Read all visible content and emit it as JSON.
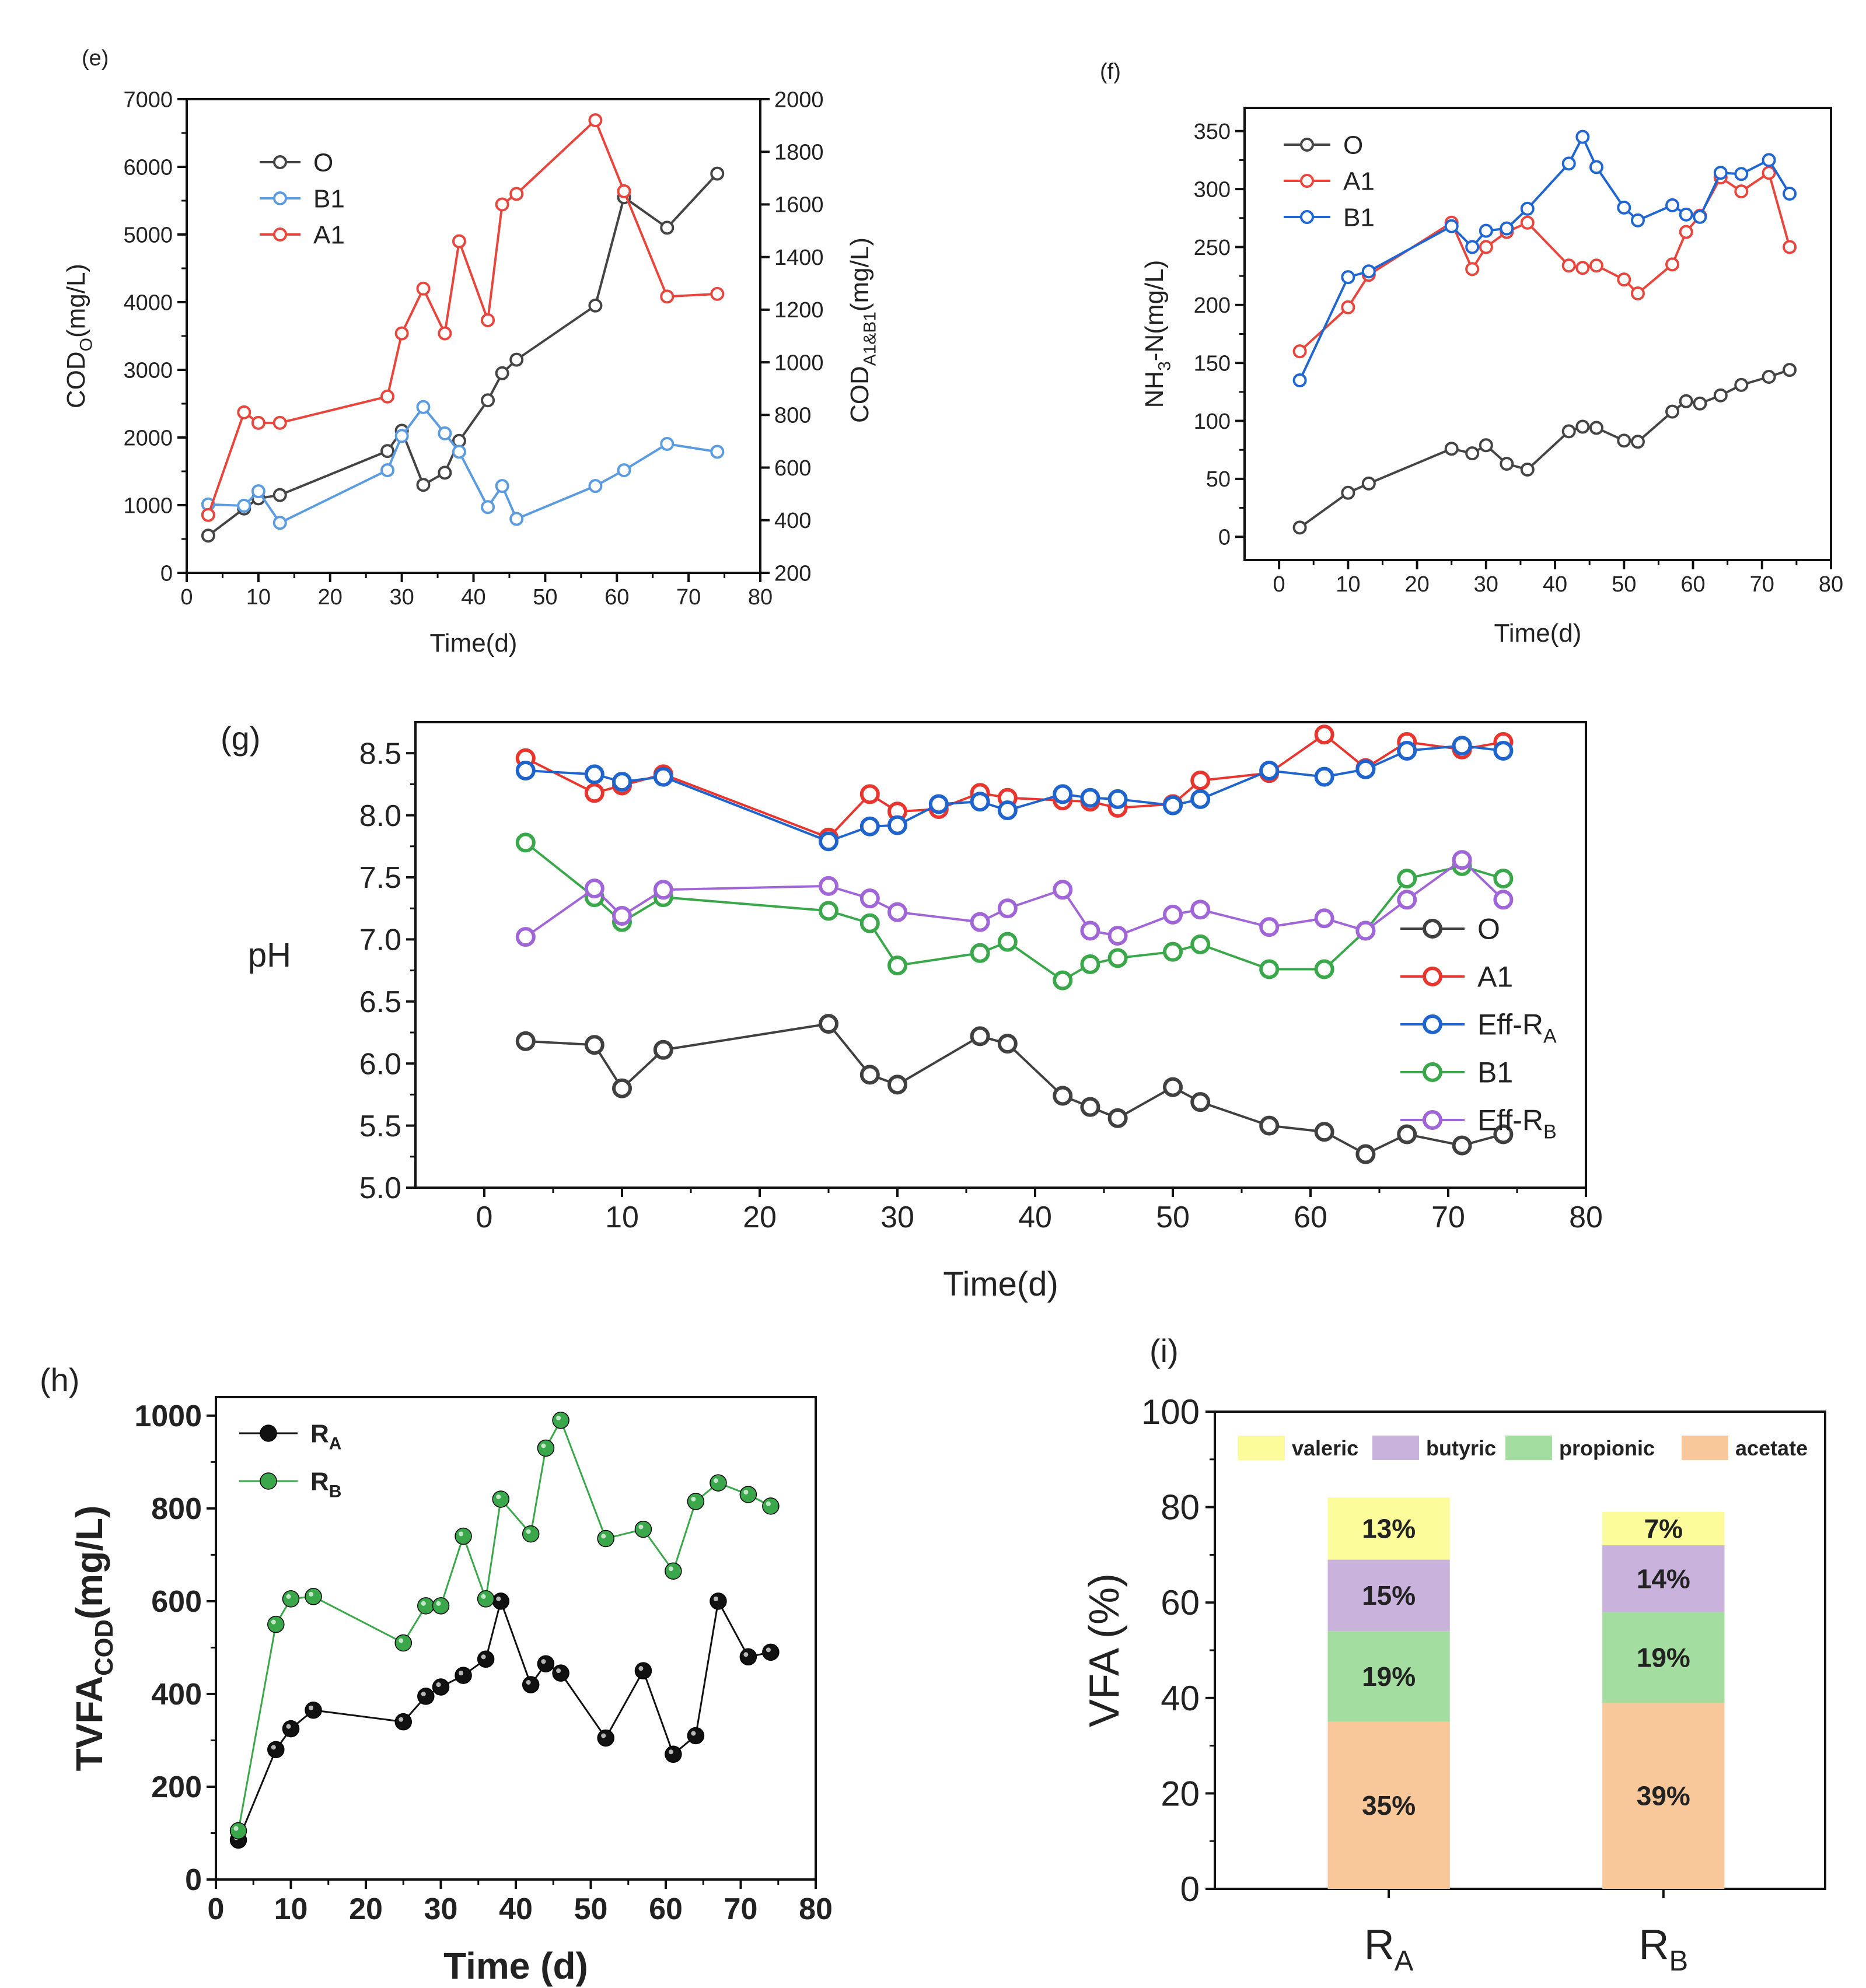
{
  "chart_data": [
    {
      "id": "e",
      "panel_label": "(e)",
      "type": "line",
      "xlabel": "Time(d)",
      "ylabel_left": {
        "base": "COD",
        "sub": "O",
        "tail": "(mg/L)"
      },
      "ylabel_right": {
        "base": "COD",
        "sub": "A1&B1",
        "tail": "(mg/L)"
      },
      "xlim": [
        0,
        80
      ],
      "xticks": [
        0,
        10,
        20,
        30,
        40,
        50,
        60,
        70,
        80
      ],
      "ylim_left": [
        0,
        7000
      ],
      "yticks_left": [
        0,
        1000,
        2000,
        3000,
        4000,
        5000,
        6000,
        7000
      ],
      "ylim_right": [
        200,
        2000
      ],
      "yticks_right": [
        200,
        400,
        600,
        800,
        1000,
        1200,
        1400,
        1600,
        1800,
        2000
      ],
      "legend_position": "top-left",
      "series": [
        {
          "name": "O",
          "color": "#444444",
          "axis": "left",
          "x": [
            3,
            8,
            10,
            13,
            28,
            30,
            33,
            36,
            38,
            42,
            44,
            46,
            57,
            61,
            67,
            74
          ],
          "y": [
            550,
            950,
            1100,
            1150,
            1800,
            2100,
            1300,
            1480,
            1950,
            2550,
            2950,
            3150,
            3950,
            5550,
            5100,
            5900
          ]
        },
        {
          "name": "B1",
          "color": "#5b9be0",
          "axis": "right",
          "x": [
            3,
            8,
            10,
            13,
            28,
            30,
            33,
            36,
            38,
            42,
            44,
            46,
            57,
            61,
            67,
            74
          ],
          "y": [
            460,
            455,
            510,
            390,
            590,
            720,
            830,
            730,
            660,
            450,
            530,
            405,
            530,
            590,
            690,
            660
          ]
        },
        {
          "name": "A1",
          "color": "#e8453c",
          "axis": "right",
          "x": [
            3,
            8,
            10,
            13,
            28,
            30,
            33,
            36,
            38,
            42,
            44,
            46,
            57,
            61,
            67,
            74
          ],
          "y": [
            420,
            810,
            770,
            770,
            870,
            1110,
            1280,
            1110,
            1460,
            1160,
            1600,
            1640,
            1920,
            1650,
            1250,
            1260
          ]
        }
      ]
    },
    {
      "id": "f",
      "panel_label": "(f)",
      "type": "line",
      "xlabel": "Time(d)",
      "ylabel": {
        "base": "NH",
        "sub": "3",
        "tail": "-N(mg/L)"
      },
      "xlim": [
        -5,
        80
      ],
      "xticks": [
        0,
        10,
        20,
        30,
        40,
        50,
        60,
        70,
        80
      ],
      "ylim": [
        -20,
        370
      ],
      "yticks": [
        0,
        50,
        100,
        150,
        200,
        250,
        300,
        350
      ],
      "legend_position": "top-left",
      "series": [
        {
          "name": "O",
          "color": "#444444",
          "x": [
            3,
            10,
            13,
            25,
            28,
            30,
            33,
            36,
            42,
            44,
            46,
            50,
            52,
            57,
            59,
            61,
            64,
            67,
            71,
            74
          ],
          "y": [
            8,
            38,
            46,
            76,
            72,
            79,
            63,
            58,
            91,
            95,
            94,
            83,
            82,
            108,
            117,
            115,
            122,
            131,
            138,
            144
          ]
        },
        {
          "name": "A1",
          "color": "#e8453c",
          "x": [
            3,
            10,
            13,
            25,
            28,
            30,
            33,
            36,
            42,
            44,
            46,
            50,
            52,
            57,
            59,
            61,
            64,
            67,
            71,
            74
          ],
          "y": [
            160,
            198,
            226,
            271,
            231,
            250,
            263,
            271,
            234,
            232,
            234,
            222,
            210,
            235,
            263,
            277,
            310,
            298,
            314,
            250
          ]
        },
        {
          "name": "B1",
          "color": "#1f66d1",
          "x": [
            3,
            10,
            13,
            25,
            28,
            30,
            33,
            36,
            42,
            44,
            46,
            50,
            52,
            57,
            59,
            61,
            64,
            67,
            71,
            74
          ],
          "y": [
            135,
            224,
            229,
            268,
            250,
            264,
            266,
            283,
            322,
            345,
            319,
            284,
            273,
            286,
            278,
            276,
            314,
            313,
            325,
            296
          ]
        }
      ]
    },
    {
      "id": "g",
      "panel_label": "(g)",
      "type": "line",
      "xlabel": "Time(d)",
      "ylabel": "pH",
      "xlim": [
        -5,
        80
      ],
      "xticks": [
        0,
        10,
        20,
        30,
        40,
        50,
        60,
        70,
        80
      ],
      "ylim": [
        5.0,
        8.75
      ],
      "yticks": [
        5.0,
        5.5,
        6.0,
        6.5,
        7.0,
        7.5,
        8.0,
        8.5
      ],
      "legend_position": "center-right",
      "series": [
        {
          "name": "O",
          "name_sub": "",
          "color": "#404040",
          "x": [
            3,
            8,
            10,
            13,
            25,
            28,
            30,
            36,
            38,
            42,
            44,
            46,
            50,
            52,
            57,
            61,
            64,
            67,
            71,
            74
          ],
          "y": [
            6.18,
            6.15,
            5.8,
            6.11,
            6.32,
            5.91,
            5.83,
            6.22,
            6.16,
            5.74,
            5.65,
            5.56,
            5.81,
            5.69,
            5.5,
            5.45,
            5.27,
            5.43,
            5.34,
            5.43
          ]
        },
        {
          "name": "A1",
          "name_sub": "",
          "color": "#e8362e",
          "x": [
            3,
            8,
            10,
            13,
            25,
            28,
            30,
            33,
            36,
            38,
            42,
            44,
            46,
            50,
            52,
            57,
            61,
            64,
            67,
            71,
            74
          ],
          "y": [
            8.46,
            8.18,
            8.24,
            8.33,
            7.82,
            8.17,
            8.03,
            8.05,
            8.18,
            8.14,
            8.12,
            8.11,
            8.06,
            8.09,
            8.28,
            8.34,
            8.65,
            8.38,
            8.59,
            8.53,
            8.59
          ]
        },
        {
          "name": "Eff-R",
          "name_sub": "A",
          "color": "#1f63cc",
          "x": [
            3,
            8,
            10,
            13,
            25,
            28,
            30,
            33,
            36,
            38,
            42,
            44,
            46,
            50,
            52,
            57,
            61,
            64,
            67,
            71,
            74
          ],
          "y": [
            8.36,
            8.33,
            8.27,
            8.31,
            7.79,
            7.91,
            7.92,
            8.09,
            8.11,
            8.04,
            8.17,
            8.14,
            8.13,
            8.08,
            8.13,
            8.36,
            8.31,
            8.37,
            8.52,
            8.56,
            8.52
          ]
        },
        {
          "name": "B1",
          "name_sub": "",
          "color": "#3aa84a",
          "x": [
            3,
            8,
            10,
            13,
            25,
            28,
            30,
            36,
            38,
            42,
            44,
            46,
            50,
            52,
            57,
            61,
            64,
            67,
            71,
            74
          ],
          "y": [
            7.78,
            7.34,
            7.14,
            7.34,
            7.23,
            7.13,
            6.79,
            6.89,
            6.98,
            6.67,
            6.8,
            6.85,
            6.9,
            6.96,
            6.76,
            6.76,
            7.07,
            7.49,
            7.59,
            7.49
          ]
        },
        {
          "name": "Eff-R",
          "name_sub": "B",
          "color": "#a066d8",
          "x": [
            3,
            8,
            10,
            13,
            25,
            28,
            30,
            36,
            38,
            42,
            44,
            46,
            50,
            52,
            57,
            61,
            64,
            67,
            71,
            74
          ],
          "y": [
            7.02,
            7.41,
            7.19,
            7.4,
            7.43,
            7.33,
            7.22,
            7.14,
            7.25,
            7.4,
            7.07,
            7.03,
            7.2,
            7.24,
            7.1,
            7.17,
            7.07,
            7.32,
            7.64,
            7.32
          ]
        }
      ]
    },
    {
      "id": "h",
      "panel_label": "(h)",
      "type": "line",
      "xlabel": "Time (d)",
      "ylabel": {
        "base": "TVFA",
        "sub": "COD",
        "tail": "(mg/L)"
      },
      "xlim": [
        0,
        80
      ],
      "xticks": [
        0,
        10,
        20,
        30,
        40,
        50,
        60,
        70,
        80
      ],
      "ylim": [
        0,
        1040
      ],
      "yticks": [
        0,
        200,
        400,
        600,
        800,
        1000
      ],
      "legend_position": "top-left",
      "series": [
        {
          "name": "R",
          "name_sub": "A",
          "color": "#111111",
          "x": [
            3,
            8,
            10,
            13,
            25,
            28,
            30,
            33,
            36,
            38,
            42,
            44,
            46,
            52,
            57,
            61,
            64,
            67,
            71,
            74
          ],
          "y": [
            85,
            280,
            325,
            365,
            340,
            395,
            415,
            440,
            475,
            600,
            420,
            465,
            445,
            305,
            450,
            270,
            310,
            600,
            480,
            490
          ]
        },
        {
          "name": "R",
          "name_sub": "B",
          "color": "#3aa84a",
          "x": [
            3,
            8,
            10,
            13,
            25,
            28,
            30,
            33,
            36,
            38,
            42,
            44,
            46,
            52,
            57,
            61,
            64,
            67,
            71,
            74
          ],
          "y": [
            105,
            550,
            605,
            610,
            510,
            590,
            590,
            740,
            605,
            820,
            745,
            930,
            990,
            735,
            755,
            665,
            815,
            855,
            830,
            805
          ]
        }
      ]
    },
    {
      "id": "i",
      "panel_label": "(i)",
      "type": "bar",
      "stacked": true,
      "ylabel": "VFA (%)",
      "ylim": [
        0,
        100
      ],
      "yticks": [
        0,
        20,
        40,
        60,
        80,
        100
      ],
      "categories": [
        {
          "name": "R",
          "sub": "A"
        },
        {
          "name": "R",
          "sub": "B"
        }
      ],
      "legend_position": "top",
      "series": [
        {
          "name": "acetate",
          "color": "#f8c89a",
          "values": [
            35,
            39
          ],
          "labels": [
            "35%",
            "39%"
          ]
        },
        {
          "name": "propionic",
          "color": "#a3dea0",
          "values": [
            19,
            19
          ],
          "labels": [
            "19%",
            "19%"
          ]
        },
        {
          "name": "butyric",
          "color": "#c9b2dc",
          "values": [
            15,
            14
          ],
          "labels": [
            "15%",
            "14%"
          ]
        },
        {
          "name": "valeric",
          "color": "#fcfc9a",
          "values": [
            13,
            7
          ],
          "labels": [
            "13%",
            "7%"
          ]
        }
      ],
      "legend_order": [
        "valeric",
        "butyric",
        "propionic",
        "acetate"
      ]
    }
  ]
}
